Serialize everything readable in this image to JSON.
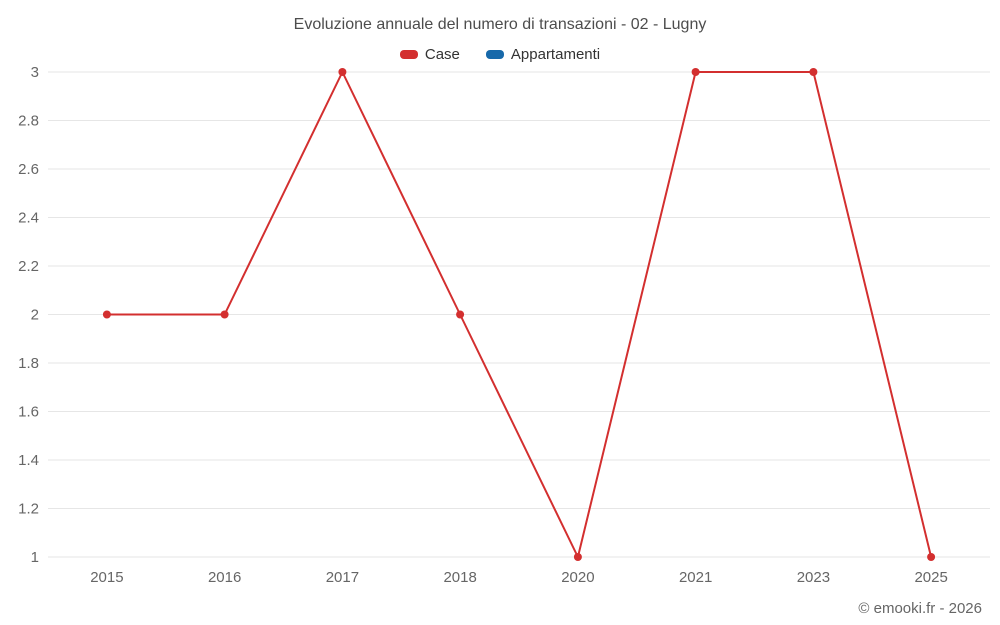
{
  "title": "Evoluzione annuale del numero di transazioni - 02 - Lugny",
  "footer": "© emooki.fr - 2026",
  "legend": [
    {
      "label": "Case",
      "color": "#d32f2f"
    },
    {
      "label": "Appartamenti",
      "color": "#1769aa"
    }
  ],
  "colors": {
    "case_series": "#d32f2f",
    "appartamenti_series": "#1769aa",
    "gridline": "#e6e6e6",
    "tick_label": "#666666",
    "title_text": "#4d4d4d"
  },
  "chart_data": {
    "type": "line",
    "title": "Evoluzione annuale del numero di transazioni - 02 - Lugny",
    "categories": [
      "2015",
      "2016",
      "2017",
      "2018",
      "2020",
      "2021",
      "2023",
      "2025"
    ],
    "series": [
      {
        "name": "Case",
        "color": "#d32f2f",
        "values": [
          2,
          2,
          3,
          2,
          1,
          3,
          3,
          1
        ]
      },
      {
        "name": "Appartamenti",
        "color": "#1769aa",
        "values": []
      }
    ],
    "xlabel": "",
    "ylabel": "",
    "ylim": [
      1,
      3
    ],
    "ytick_step": 0.2,
    "yticks": [
      1,
      1.2,
      1.4,
      1.6,
      1.8,
      2,
      2.2,
      2.4,
      2.6,
      2.8,
      3
    ],
    "grid": "horizontal",
    "legend_position": "top"
  }
}
